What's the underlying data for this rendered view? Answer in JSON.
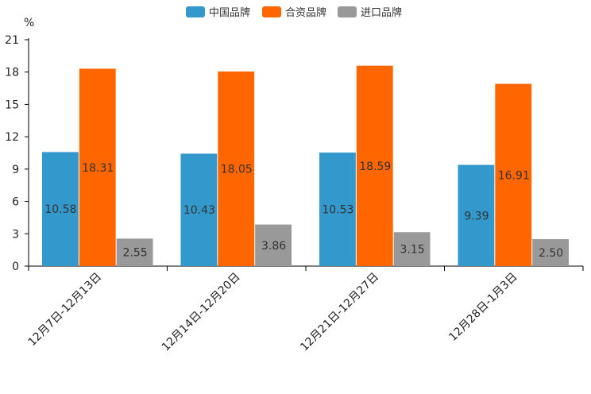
{
  "chart_data": {
    "type": "bar",
    "title": "",
    "xlabel": "",
    "ylabel": "%",
    "ylim": [
      0,
      21
    ],
    "yticks": [
      0,
      3,
      6,
      9,
      12,
      15,
      18,
      21
    ],
    "grid": false,
    "legend_position": "top-center",
    "categories": [
      "12月7日-12月13日",
      "12月14日-12月20日",
      "12月21日-12月27日",
      "12月28日-1月3日"
    ],
    "series": [
      {
        "name": "中国品牌",
        "color": "#3399cc",
        "values": [
          10.58,
          10.43,
          10.53,
          9.39
        ],
        "labels": [
          "10.58",
          "10.43",
          "10.53",
          "9.39"
        ]
      },
      {
        "name": "合资品牌",
        "color": "#ff6600",
        "values": [
          18.31,
          18.05,
          18.59,
          16.91
        ],
        "labels": [
          "18.31",
          "18.05",
          "18.59",
          "16.91"
        ]
      },
      {
        "name": "进口品牌",
        "color": "#999999",
        "values": [
          2.55,
          3.86,
          3.15,
          2.5
        ],
        "labels": [
          "2.55",
          "3.86",
          "3.15",
          "2.50"
        ]
      }
    ]
  }
}
